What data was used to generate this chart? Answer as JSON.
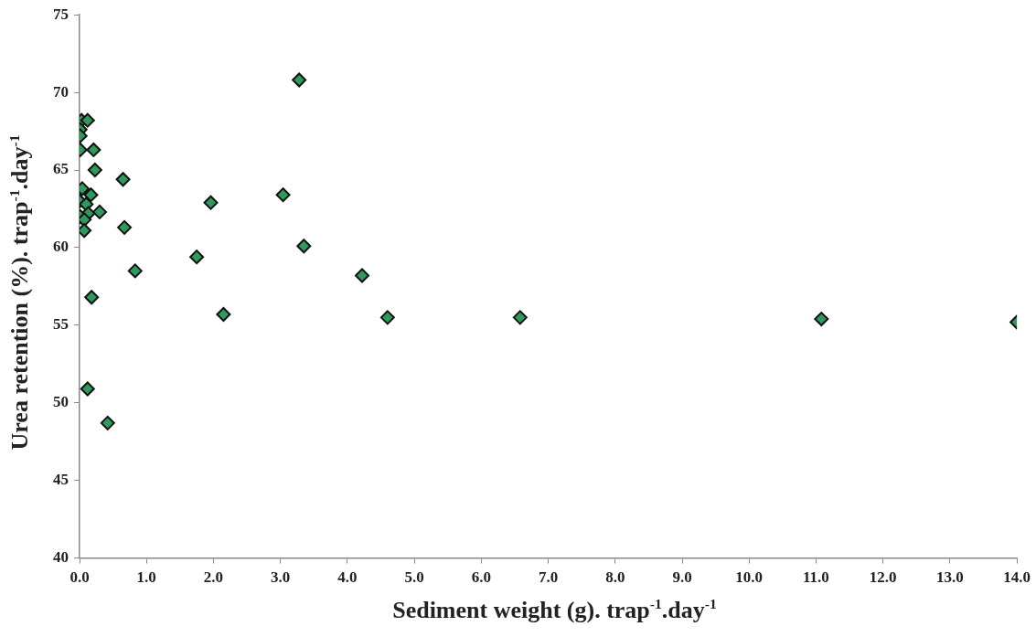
{
  "chart_data": {
    "type": "scatter",
    "xlabel": "Sediment weight (g). trap$^{-1}$.day$^{-1}$",
    "ylabel": "Urea retention (%). trap$^{-1}$.day$^{-1}$",
    "x": [
      0.03,
      0.12,
      0.01,
      0.01,
      0.01,
      0.21,
      0.23,
      0.65,
      0.04,
      0.17,
      0.0,
      0.1,
      0.3,
      0.13,
      0.01,
      0.07,
      0.07,
      0.67,
      0.83,
      0.18,
      1.75,
      1.96,
      2.15,
      3.04,
      3.35,
      3.28,
      0.12,
      0.42,
      4.22,
      4.6,
      6.58,
      11.08,
      14.0
    ],
    "values": [
      68.2,
      68.2,
      67.6,
      67.2,
      66.3,
      66.3,
      65.0,
      64.4,
      63.8,
      63.4,
      63.0,
      62.8,
      62.3,
      62.2,
      62.0,
      61.8,
      61.1,
      61.3,
      58.5,
      56.8,
      59.4,
      62.9,
      55.7,
      63.4,
      60.1,
      70.8,
      50.9,
      48.7,
      58.2,
      55.5,
      55.5,
      55.4,
      55.2
    ],
    "color": "#2e9a5c",
    "marker": "diamond",
    "grid": false,
    "legend": false,
    "xlim": [
      0,
      14
    ],
    "xticks": [
      {
        "value": 0,
        "label": "0.0"
      },
      {
        "value": 1,
        "label": "1.0"
      },
      {
        "value": 2,
        "label": "2.0"
      },
      {
        "value": 3,
        "label": "3.0"
      },
      {
        "value": 4,
        "label": "4.0"
      },
      {
        "value": 5,
        "label": "5.0"
      },
      {
        "value": 6,
        "label": "6.0"
      },
      {
        "value": 7,
        "label": "7.0"
      },
      {
        "value": 8,
        "label": "8.0"
      },
      {
        "value": 9,
        "label": "9.0"
      },
      {
        "value": 10,
        "label": "10.0"
      },
      {
        "value": 11,
        "label": "11.0"
      },
      {
        "value": 12,
        "label": "12.0"
      },
      {
        "value": 13,
        "label": "13.0"
      },
      {
        "value": 14,
        "label": "14.0"
      }
    ],
    "ylim": [
      40,
      75
    ],
    "yticks": [
      40,
      45,
      50,
      55,
      60,
      65,
      70,
      75
    ]
  }
}
